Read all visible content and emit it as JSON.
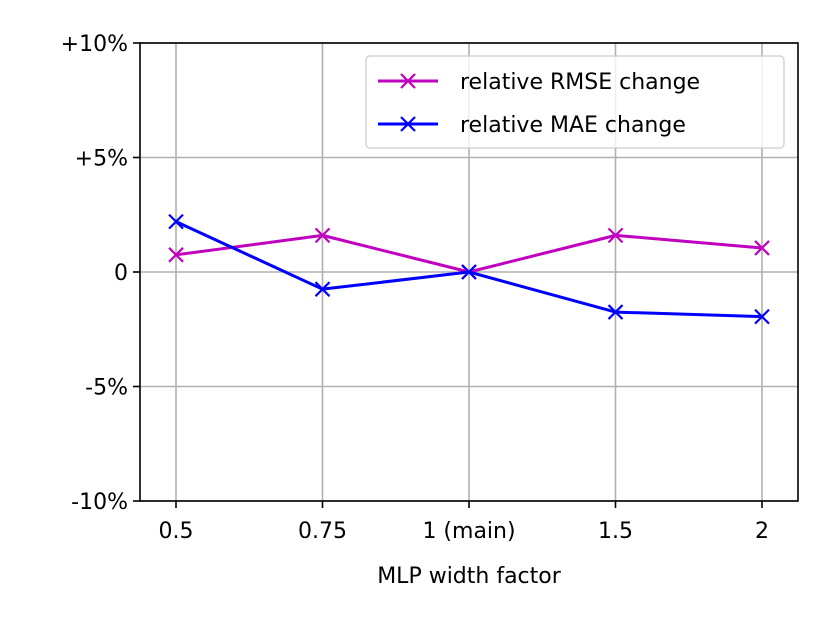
{
  "chart_data": {
    "type": "line",
    "title": "",
    "xlabel": "MLP width factor",
    "ylabel": "",
    "categories": [
      "0.5",
      "0.75",
      "1 (main)",
      "1.5",
      "2"
    ],
    "ylim": [
      -10,
      10
    ],
    "yticks": [
      {
        "value": 10,
        "label": "+10%"
      },
      {
        "value": 5,
        "label": "+5%"
      },
      {
        "value": 0,
        "label": "0"
      },
      {
        "value": -5,
        "label": "-5%"
      },
      {
        "value": -10,
        "label": "-10%"
      }
    ],
    "grid": true,
    "legend_position": "top-right",
    "series": [
      {
        "name": "relative RMSE change",
        "color": "#bf00bf",
        "marker": "x",
        "values": [
          0.75,
          1.6,
          0.0,
          1.6,
          1.05
        ]
      },
      {
        "name": "relative MAE change",
        "color": "#0000ff",
        "marker": "x",
        "values": [
          2.2,
          -0.75,
          0.0,
          -1.75,
          -1.95
        ]
      }
    ]
  }
}
